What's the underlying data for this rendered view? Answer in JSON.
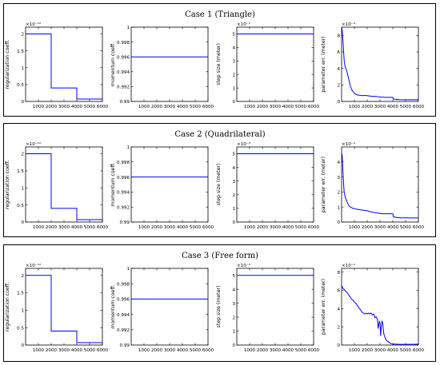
{
  "colors": {
    "line": "#0000ff",
    "axis": "#000000",
    "frame": "#000000"
  },
  "chart_data": [
    {
      "title": "Case 1 (Triangle)",
      "subplots": [
        {
          "type": "line",
          "ylabel": "regularization coeff.",
          "exponent": "×10⁻¹²",
          "xlim": [
            0,
            6000
          ],
          "ylim": [
            0,
            2.2
          ],
          "xticks": [
            1000,
            2000,
            3000,
            4000,
            5000,
            6000
          ],
          "yticks": [
            0,
            0.5,
            1,
            1.5,
            2
          ],
          "yticklabels": [
            "0",
            "0.5",
            "1",
            "1.5",
            "2"
          ],
          "x": [
            0,
            2000,
            2000,
            4000,
            4000,
            6000
          ],
          "y": [
            2,
            2,
            0.4,
            0.4,
            0.07,
            0.07
          ]
        },
        {
          "type": "line",
          "ylabel": "momentum coeff.",
          "exponent": "",
          "xlim": [
            0,
            6000
          ],
          "ylim": [
            0.99,
            1
          ],
          "xticks": [
            1000,
            2000,
            3000,
            4000,
            5000,
            6000
          ],
          "yticks": [
            0.99,
            0.992,
            0.994,
            0.996,
            0.998,
            1
          ],
          "yticklabels": [
            "0.99",
            "0.992",
            "0.994",
            "0.996",
            "0.998",
            "1"
          ],
          "x": [
            0,
            6000
          ],
          "y": [
            0.996,
            0.996
          ]
        },
        {
          "type": "line",
          "ylabel": "step size (meter)",
          "exponent": "×10⁻³",
          "xlim": [
            0,
            6000
          ],
          "ylim": [
            0,
            5.5
          ],
          "xticks": [
            1000,
            2000,
            3000,
            4000,
            5000,
            6000
          ],
          "yticks": [
            0,
            1,
            2,
            3,
            4,
            5
          ],
          "yticklabels": [
            "0",
            "1",
            "2",
            "3",
            "4",
            "5"
          ],
          "x": [
            0,
            6000
          ],
          "y": [
            5,
            5
          ]
        },
        {
          "type": "line",
          "ylabel": "parameter err. (meter)",
          "exponent": "×10⁻⁴",
          "xlim": [
            0,
            6000
          ],
          "ylim": [
            0,
            9
          ],
          "xticks": [
            1000,
            2000,
            3000,
            4000,
            5000,
            6000
          ],
          "yticks": [
            0,
            2,
            4,
            6,
            8
          ],
          "yticklabels": [
            "0",
            "2",
            "4",
            "6",
            "8"
          ],
          "x": [
            0,
            50,
            100,
            150,
            200,
            250,
            300,
            400,
            500,
            600,
            700,
            800,
            900,
            1000,
            1100,
            1200,
            1400,
            1600,
            1800,
            2000,
            2200,
            2400,
            2600,
            2800,
            3000,
            3200,
            3400,
            3600,
            3800,
            4000,
            4050,
            4200,
            4500,
            5000,
            5500,
            6000
          ],
          "y": [
            9,
            8.6,
            7.5,
            6.2,
            5,
            4.4,
            4.1,
            3.7,
            3.1,
            2.4,
            1.8,
            1.4,
            1.2,
            1.0,
            0.9,
            0.8,
            0.75,
            0.7,
            0.72,
            0.7,
            0.65,
            0.6,
            0.62,
            0.58,
            0.55,
            0.52,
            0.5,
            0.5,
            0.5,
            0.5,
            0.3,
            0.25,
            0.22,
            0.2,
            0.2,
            0.2
          ]
        }
      ]
    },
    {
      "title": "Case 2 (Quadrilateral)",
      "subplots": [
        {
          "type": "line",
          "ylabel": "regularization coeff.",
          "exponent": "×10⁻¹²",
          "xlim": [
            0,
            6000
          ],
          "ylim": [
            0,
            2.2
          ],
          "xticks": [
            1000,
            2000,
            3000,
            4000,
            5000,
            6000
          ],
          "yticks": [
            0,
            0.5,
            1,
            1.5,
            2
          ],
          "yticklabels": [
            "0",
            "0.5",
            "1",
            "1.5",
            "2"
          ],
          "x": [
            0,
            2000,
            2000,
            4000,
            4000,
            6000
          ],
          "y": [
            2,
            2,
            0.4,
            0.4,
            0.07,
            0.07
          ]
        },
        {
          "type": "line",
          "ylabel": "momentum coeff.",
          "exponent": "",
          "xlim": [
            0,
            6000
          ],
          "ylim": [
            0.99,
            1
          ],
          "xticks": [
            1000,
            2000,
            3000,
            4000,
            5000,
            6000
          ],
          "yticks": [
            0.99,
            0.992,
            0.994,
            0.996,
            0.998,
            1
          ],
          "yticklabels": [
            "0.99",
            "0.992",
            "0.994",
            "0.996",
            "0.998",
            "1"
          ],
          "x": [
            0,
            6000
          ],
          "y": [
            0.996,
            0.996
          ]
        },
        {
          "type": "line",
          "ylabel": "step size (meter)",
          "exponent": "×10⁻³",
          "xlim": [
            0,
            6000
          ],
          "ylim": [
            0,
            5.5
          ],
          "xticks": [
            1000,
            2000,
            3000,
            4000,
            5000,
            6000
          ],
          "yticks": [
            0,
            1,
            2,
            3,
            4,
            5
          ],
          "yticklabels": [
            "0",
            "1",
            "2",
            "3",
            "4",
            "5"
          ],
          "x": [
            0,
            6000
          ],
          "y": [
            5,
            5
          ]
        },
        {
          "type": "line",
          "ylabel": "parameter err. (meter)",
          "exponent": "×10⁻⁴",
          "xlim": [
            0,
            6000
          ],
          "ylim": [
            0,
            5
          ],
          "xticks": [
            1000,
            2000,
            3000,
            4000,
            5000,
            6000
          ],
          "yticks": [
            0,
            1,
            2,
            3,
            4
          ],
          "yticklabels": [
            "0",
            "1",
            "2",
            "3",
            "4"
          ],
          "x": [
            0,
            50,
            100,
            150,
            200,
            300,
            400,
            500,
            600,
            700,
            800,
            900,
            1000,
            1200,
            1400,
            1600,
            1800,
            2000,
            2400,
            2800,
            3200,
            3600,
            4000,
            4050,
            4300,
            4600,
            5000,
            5500,
            6000
          ],
          "y": [
            4.6,
            4.4,
            3.5,
            2.6,
            2.0,
            1.6,
            1.4,
            1.2,
            1.05,
            1.0,
            0.95,
            0.9,
            0.9,
            0.85,
            0.82,
            0.8,
            0.78,
            0.75,
            0.65,
            0.6,
            0.55,
            0.55,
            0.55,
            0.35,
            0.3,
            0.28,
            0.28,
            0.27,
            0.27
          ]
        }
      ]
    },
    {
      "title": "Case 3 (Free form)",
      "subplots": [
        {
          "type": "line",
          "ylabel": "regularization coeff.",
          "exponent": "×10⁻¹²",
          "xlim": [
            0,
            6000
          ],
          "ylim": [
            0,
            2.2
          ],
          "xticks": [
            1000,
            2000,
            3000,
            4000,
            5000,
            6000
          ],
          "yticks": [
            0,
            0.5,
            1,
            1.5,
            2
          ],
          "yticklabels": [
            "0",
            "0.5",
            "1",
            "1.5",
            "2"
          ],
          "x": [
            0,
            2000,
            2000,
            4000,
            4000,
            6000
          ],
          "y": [
            2,
            2,
            0.4,
            0.4,
            0.07,
            0.07
          ]
        },
        {
          "type": "line",
          "ylabel": "momentum coeff.",
          "exponent": "",
          "xlim": [
            0,
            6000
          ],
          "ylim": [
            0.99,
            1
          ],
          "xticks": [
            1000,
            2000,
            3000,
            4000,
            5000,
            6000
          ],
          "yticks": [
            0.99,
            0.992,
            0.994,
            0.996,
            0.998,
            1
          ],
          "yticklabels": [
            "0.99",
            "0.992",
            "0.994",
            "0.996",
            "0.998",
            "1"
          ],
          "x": [
            0,
            6000
          ],
          "y": [
            0.996,
            0.996
          ]
        },
        {
          "type": "line",
          "ylabel": "step size (meter)",
          "exponent": "×10⁻³",
          "xlim": [
            0,
            6000
          ],
          "ylim": [
            0,
            5.5
          ],
          "xticks": [
            1000,
            2000,
            3000,
            4000,
            5000,
            6000
          ],
          "yticks": [
            0,
            1,
            2,
            3,
            4,
            5
          ],
          "yticklabels": [
            "0",
            "1",
            "2",
            "3",
            "4",
            "5"
          ],
          "x": [
            0,
            6000
          ],
          "y": [
            5,
            5
          ]
        },
        {
          "type": "line",
          "ylabel": "parameter err. (meter)",
          "exponent": "×10⁻⁴",
          "xlim": [
            0,
            6000
          ],
          "ylim": [
            0,
            8.4
          ],
          "xticks": [
            1000,
            2000,
            3000,
            4000,
            5000,
            6000
          ],
          "yticks": [
            0,
            2,
            4,
            6,
            8
          ],
          "yticklabels": [
            "0",
            "2",
            "4",
            "6",
            "8"
          ],
          "x": [
            0,
            50,
            100,
            200,
            300,
            400,
            500,
            600,
            700,
            800,
            900,
            1000,
            1100,
            1200,
            1300,
            1400,
            1500,
            1600,
            1700,
            1800,
            1900,
            2000,
            2100,
            2200,
            2300,
            2400,
            2500,
            2600,
            2700,
            2800,
            2850,
            2900,
            2950,
            3000,
            3050,
            3100,
            3150,
            3200,
            3300,
            3400,
            3500,
            3600,
            3700,
            3800,
            3900,
            4000,
            4200,
            4500,
            5000,
            5500,
            6000
          ],
          "y": [
            6.5,
            6.4,
            6.2,
            6.1,
            5.9,
            5.8,
            5.6,
            5.4,
            5.2,
            5.0,
            4.9,
            4.7,
            4.6,
            4.4,
            4.2,
            4.0,
            3.8,
            3.6,
            3.5,
            3.4,
            3.5,
            3.4,
            3.5,
            3.4,
            3.5,
            3.3,
            3.4,
            3.0,
            3.1,
            2.8,
            1.8,
            2.2,
            2.6,
            2.4,
            1.0,
            2.0,
            2.6,
            2.5,
            1.2,
            0.8,
            0.5,
            0.4,
            0.3,
            0.2,
            0.15,
            0.1,
            0.1,
            0.08,
            0.08,
            0.08,
            0.1
          ]
        }
      ]
    }
  ]
}
